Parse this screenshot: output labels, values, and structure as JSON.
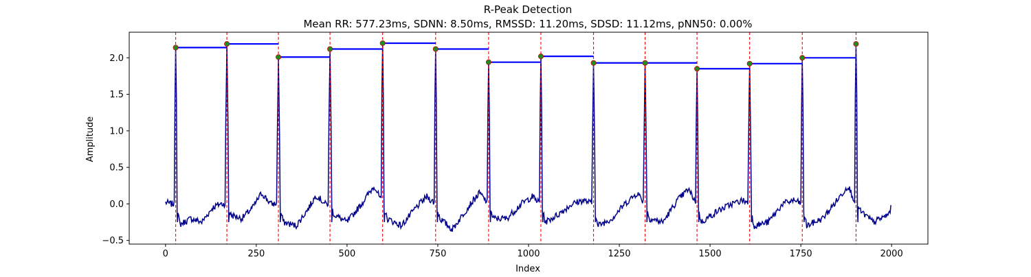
{
  "chart_data": {
    "type": "line",
    "title": "R-Peak Detection",
    "subtitle": "Mean RR: 577.23ms, SDNN: 8.50ms, RMSSD: 11.20ms, SDSD: 11.12ms, pNN50: 0.00%",
    "xlabel": "Index",
    "ylabel": "Amplitude",
    "xlim": [
      -100,
      2100
    ],
    "ylim": [
      -0.55,
      2.35
    ],
    "xticks": [
      0,
      250,
      500,
      750,
      1000,
      1250,
      1500,
      1750,
      2000
    ],
    "yticks": [
      -0.5,
      0.0,
      0.5,
      1.0,
      1.5,
      2.0
    ],
    "ytick_labels": [
      "−0.5",
      "0.0",
      "0.5",
      "1.0",
      "1.5",
      "2.0"
    ],
    "grid": false,
    "colors": {
      "signal": "#00008b",
      "peak_marker": "#228b22",
      "peak_marker_edge": "#cc0000",
      "peak_line": "#ff0000",
      "rr_segment": "#0000ff"
    },
    "peaks": [
      {
        "x": 28,
        "y": 2.14
      },
      {
        "x": 169,
        "y": 2.19
      },
      {
        "x": 311,
        "y": 2.01
      },
      {
        "x": 453,
        "y": 2.12
      },
      {
        "x": 598,
        "y": 2.2
      },
      {
        "x": 744,
        "y": 2.12
      },
      {
        "x": 890,
        "y": 1.94
      },
      {
        "x": 1034,
        "y": 2.02
      },
      {
        "x": 1179,
        "y": 1.93
      },
      {
        "x": 1321,
        "y": 1.93
      },
      {
        "x": 1464,
        "y": 1.85
      },
      {
        "x": 1609,
        "y": 1.92
      },
      {
        "x": 1754,
        "y": 2.0
      },
      {
        "x": 1902,
        "y": 2.19
      }
    ],
    "signal": {
      "x_start": 0,
      "x_end": 1999,
      "baseline_points": [
        [
          0,
          0.02
        ],
        [
          15,
          0.0
        ],
        [
          28,
          0.0
        ],
        [
          40,
          -0.28
        ],
        [
          70,
          -0.2
        ],
        [
          100,
          -0.25
        ],
        [
          130,
          -0.05
        ],
        [
          150,
          0.0
        ],
        [
          169,
          0.0
        ],
        [
          180,
          -0.15
        ],
        [
          210,
          -0.2
        ],
        [
          240,
          -0.05
        ],
        [
          265,
          0.15
        ],
        [
          290,
          0.0
        ],
        [
          311,
          0.0
        ],
        [
          325,
          -0.25
        ],
        [
          360,
          -0.3
        ],
        [
          395,
          -0.05
        ],
        [
          415,
          0.12
        ],
        [
          440,
          0.0
        ],
        [
          453,
          0.0
        ],
        [
          465,
          -0.15
        ],
        [
          500,
          -0.25
        ],
        [
          540,
          0.0
        ],
        [
          575,
          0.25
        ],
        [
          598,
          0.0
        ],
        [
          610,
          -0.2
        ],
        [
          650,
          -0.3
        ],
        [
          690,
          -0.05
        ],
        [
          720,
          0.1
        ],
        [
          744,
          0.0
        ],
        [
          756,
          -0.2
        ],
        [
          790,
          -0.35
        ],
        [
          840,
          0.0
        ],
        [
          865,
          0.15
        ],
        [
          890,
          0.0
        ],
        [
          902,
          -0.2
        ],
        [
          940,
          -0.2
        ],
        [
          980,
          0.0
        ],
        [
          1010,
          0.1
        ],
        [
          1034,
          0.0
        ],
        [
          1046,
          -0.25
        ],
        [
          1080,
          -0.15
        ],
        [
          1120,
          0.0
        ],
        [
          1150,
          0.05
        ],
        [
          1179,
          0.0
        ],
        [
          1190,
          -0.3
        ],
        [
          1230,
          -0.2
        ],
        [
          1265,
          0.0
        ],
        [
          1300,
          0.15
        ],
        [
          1321,
          0.0
        ],
        [
          1333,
          -0.2
        ],
        [
          1370,
          -0.25
        ],
        [
          1410,
          0.05
        ],
        [
          1440,
          0.2
        ],
        [
          1464,
          0.0
        ],
        [
          1476,
          -0.25
        ],
        [
          1520,
          -0.1
        ],
        [
          1560,
          0.0
        ],
        [
          1590,
          0.05
        ],
        [
          1609,
          0.0
        ],
        [
          1621,
          -0.3
        ],
        [
          1660,
          -0.25
        ],
        [
          1700,
          0.0
        ],
        [
          1730,
          0.05
        ],
        [
          1754,
          0.0
        ],
        [
          1766,
          -0.3
        ],
        [
          1810,
          -0.2
        ],
        [
          1850,
          0.05
        ],
        [
          1880,
          0.25
        ],
        [
          1902,
          0.0
        ],
        [
          1914,
          -0.1
        ],
        [
          1950,
          -0.25
        ],
        [
          1990,
          -0.15
        ],
        [
          1999,
          -0.05
        ]
      ]
    }
  }
}
